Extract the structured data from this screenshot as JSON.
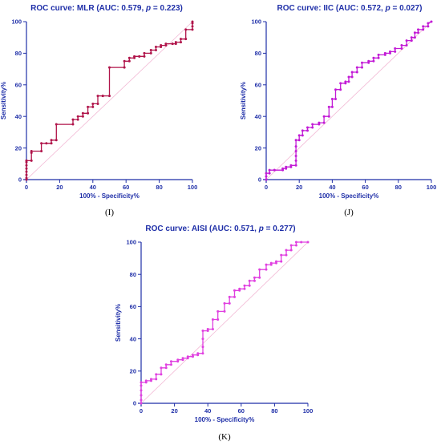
{
  "chart_data": [
    {
      "type": "line",
      "panel_label": "(I)",
      "title_prefix": "ROC curve: MLR (AUC: 0.579, ",
      "title_p": "p",
      "title_suffix": " = 0.223)",
      "xlabel": "100% - Specificity%",
      "ylabel": "Sensitivity%",
      "xlim": [
        0,
        100
      ],
      "ylim": [
        0,
        100
      ],
      "xticks": [
        "0",
        "20",
        "40",
        "60",
        "80",
        "100"
      ],
      "yticks": [
        "0",
        "20",
        "40",
        "60",
        "80",
        "100"
      ],
      "color": "#b0144a",
      "reference_line": true,
      "series": [
        {
          "x": [
            0,
            0,
            0,
            0,
            0,
            0,
            0,
            0,
            0,
            3,
            3,
            3,
            9,
            9,
            12,
            15,
            15,
            18,
            18,
            28,
            28,
            31,
            31,
            34,
            34,
            37,
            37,
            40,
            40,
            43,
            43,
            46,
            46,
            50,
            50,
            59,
            59,
            62,
            62,
            65,
            65,
            68,
            68,
            71,
            71,
            75,
            75,
            78,
            78,
            81,
            81,
            84,
            84,
            88,
            88,
            90,
            90,
            93,
            93,
            96,
            96,
            100,
            100,
            100,
            100
          ],
          "y": [
            0,
            1,
            3,
            5,
            7,
            9,
            11,
            12,
            12,
            12,
            17,
            18,
            18,
            23,
            23,
            23,
            25,
            25,
            35,
            35,
            38,
            38,
            40,
            40,
            42,
            42,
            46,
            46,
            48,
            48,
            53,
            53,
            53,
            53,
            71,
            71,
            75,
            75,
            77,
            77,
            78,
            78,
            78,
            78,
            80,
            80,
            82,
            82,
            84,
            84,
            85,
            85,
            86,
            86,
            86,
            86,
            87,
            87,
            89,
            89,
            95,
            95,
            97,
            99,
            100
          ]
        }
      ]
    },
    {
      "type": "line",
      "panel_label": "(J)",
      "title_prefix": "ROC curve: IIC (AUC: 0.572, ",
      "title_p": "p",
      "title_suffix": " = 0.027)",
      "xlabel": "100% - Specificity%",
      "ylabel": "Sensitivity%",
      "xlim": [
        0,
        100
      ],
      "ylim": [
        0,
        100
      ],
      "xticks": [
        "0",
        "20",
        "40",
        "60",
        "80",
        "100"
      ],
      "yticks": [
        "0",
        "20",
        "40",
        "60",
        "80",
        "100"
      ],
      "color": "#c21ad6",
      "reference_line": true,
      "series": [
        {
          "x": [
            0,
            0,
            0,
            2,
            2,
            5,
            5,
            10,
            10,
            12,
            12,
            15,
            15,
            18,
            18,
            18,
            18,
            18,
            18,
            20,
            20,
            22,
            22,
            25,
            25,
            28,
            28,
            32,
            32,
            35,
            35,
            38,
            38,
            40,
            40,
            42,
            42,
            45,
            45,
            48,
            48,
            50,
            50,
            52,
            52,
            55,
            55,
            58,
            58,
            62,
            62,
            65,
            65,
            68,
            68,
            72,
            72,
            75,
            75,
            78,
            78,
            82,
            82,
            85,
            85,
            88,
            88,
            90,
            90,
            92,
            92,
            95,
            95,
            98,
            98,
            100
          ],
          "y": [
            0,
            2,
            4,
            4,
            6,
            6,
            6,
            6,
            7,
            7,
            8,
            8,
            9,
            9,
            12,
            15,
            18,
            21,
            25,
            25,
            28,
            28,
            31,
            31,
            33,
            33,
            35,
            35,
            36,
            36,
            40,
            40,
            46,
            46,
            51,
            51,
            57,
            57,
            61,
            61,
            62,
            62,
            65,
            65,
            68,
            68,
            71,
            71,
            74,
            74,
            75,
            75,
            77,
            77,
            79,
            79,
            80,
            80,
            81,
            81,
            83,
            83,
            85,
            85,
            88,
            88,
            90,
            90,
            93,
            93,
            95,
            95,
            97,
            97,
            99,
            100
          ]
        }
      ]
    },
    {
      "type": "line",
      "panel_label": "(K)",
      "title_prefix": "ROC curve: AISI (AUC: 0.571, ",
      "title_p": "p",
      "title_suffix": " = 0.277)",
      "xlabel": "100% - Specificity%",
      "ylabel": "Sensitivity%",
      "xlim": [
        0,
        100
      ],
      "ylim": [
        0,
        100
      ],
      "xticks": [
        "0",
        "20",
        "40",
        "60",
        "80",
        "100"
      ],
      "yticks": [
        "0",
        "20",
        "40",
        "60",
        "80",
        "100"
      ],
      "color": "#e040e0",
      "reference_line": true,
      "series": [
        {
          "x": [
            0,
            0,
            0,
            0,
            0,
            0,
            3,
            3,
            6,
            6,
            9,
            9,
            12,
            12,
            15,
            15,
            18,
            18,
            22,
            22,
            25,
            25,
            28,
            28,
            31,
            31,
            34,
            34,
            37,
            37,
            37,
            37,
            40,
            40,
            43,
            43,
            46,
            46,
            50,
            50,
            53,
            53,
            56,
            56,
            59,
            59,
            62,
            62,
            65,
            65,
            68,
            68,
            71,
            71,
            75,
            75,
            78,
            78,
            81,
            81,
            84,
            84,
            87,
            87,
            90,
            90,
            93,
            93,
            96,
            100
          ],
          "y": [
            0,
            2,
            5,
            8,
            11,
            13,
            13,
            14,
            14,
            15,
            15,
            18,
            18,
            22,
            22,
            24,
            24,
            26,
            26,
            27,
            27,
            28,
            28,
            29,
            29,
            30,
            30,
            31,
            31,
            35,
            40,
            45,
            45,
            46,
            46,
            52,
            52,
            57,
            57,
            62,
            62,
            66,
            66,
            70,
            70,
            71,
            71,
            73,
            73,
            76,
            76,
            78,
            78,
            83,
            83,
            86,
            86,
            87,
            87,
            88,
            88,
            92,
            92,
            95,
            95,
            98,
            98,
            100,
            100,
            100
          ]
        }
      ]
    }
  ]
}
